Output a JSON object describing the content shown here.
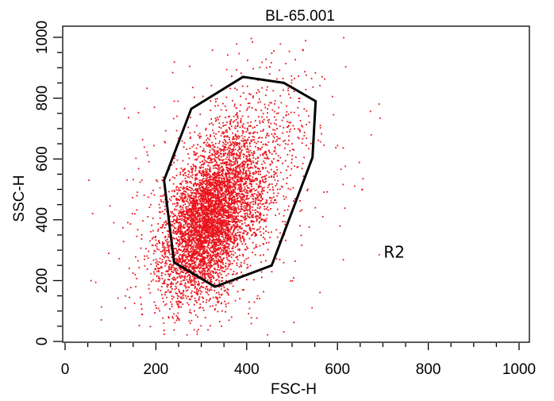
{
  "chart_data": {
    "type": "scatter",
    "title": "BL-65.001",
    "xlabel": "FSC-H",
    "ylabel": "SSC-H",
    "xlim": [
      0,
      1000
    ],
    "ylim": [
      0,
      1000
    ],
    "x_ticks": [
      0,
      200,
      400,
      600,
      800,
      1000
    ],
    "y_ticks": [
      0,
      200,
      400,
      600,
      800,
      1000
    ],
    "x_tick_labels": [
      "0",
      "200",
      "400",
      "600",
      "800",
      "1000"
    ],
    "y_tick_labels": [
      "0",
      "200",
      "400",
      "600",
      "800",
      "1000"
    ],
    "point_color": "#e8141c",
    "grid": false,
    "population": {
      "approx_count": 6000,
      "core_center": [
        340,
        400
      ],
      "core_spread": [
        45,
        130
      ],
      "elongation_axis": "diagonal-up-right"
    },
    "gate": {
      "name": "R2",
      "label_position": [
        725,
        275
      ],
      "vertices": [
        [
          218,
          530
        ],
        [
          278,
          765
        ],
        [
          392,
          870
        ],
        [
          482,
          850
        ],
        [
          552,
          790
        ],
        [
          545,
          605
        ],
        [
          455,
          250
        ],
        [
          330,
          180
        ],
        [
          240,
          260
        ]
      ],
      "color": "#000000"
    }
  }
}
